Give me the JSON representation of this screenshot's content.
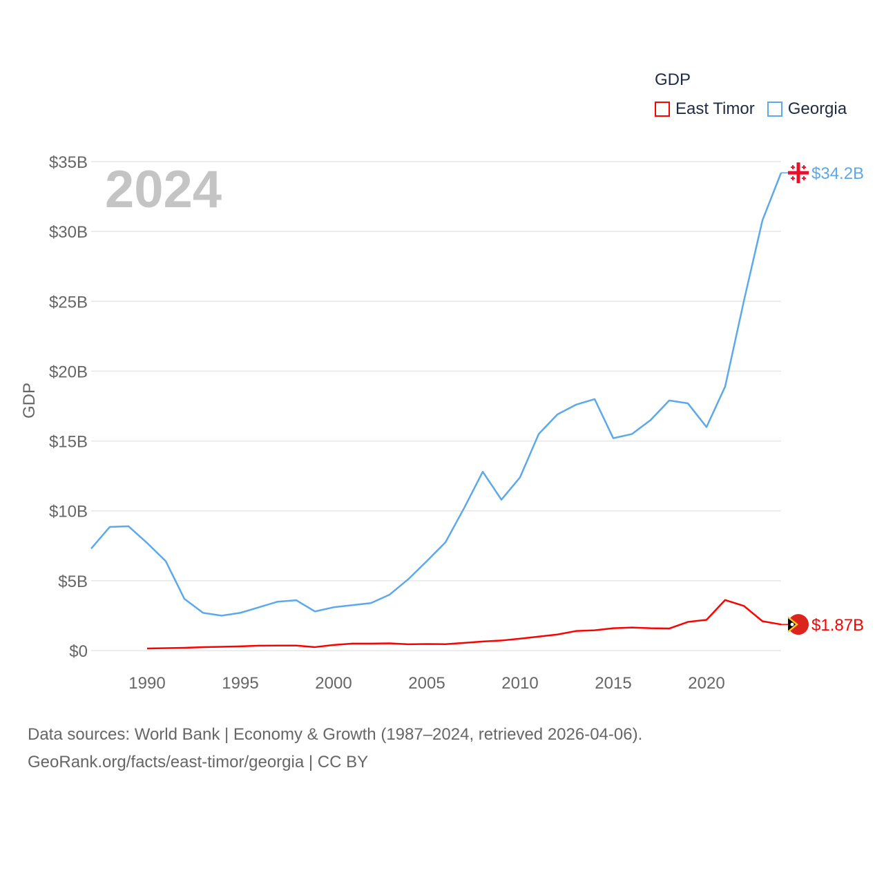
{
  "chart_data": {
    "type": "line",
    "title": "GDP",
    "ylabel": "GDP",
    "year_label": "2024",
    "xlim": [
      1987,
      2024
    ],
    "ylim": [
      0,
      35
    ],
    "x_ticks": [
      1990,
      1995,
      2000,
      2005,
      2010,
      2015,
      2020
    ],
    "y_ticks": [
      0,
      5,
      10,
      15,
      20,
      25,
      30,
      35
    ],
    "y_tick_labels": [
      "$0",
      "$5B",
      "$10B",
      "$15B",
      "$20B",
      "$25B",
      "$30B",
      "$35B"
    ],
    "grid": true,
    "legend_position": "top-right",
    "series": [
      {
        "name": "East Timor",
        "color": "#ff0000",
        "end_label": "$1.87B",
        "flag": "east-timor-flag",
        "x": [
          1990,
          1991,
          1992,
          1993,
          1994,
          1995,
          1996,
          1997,
          1998,
          1999,
          2000,
          2001,
          2002,
          2003,
          2004,
          2005,
          2006,
          2007,
          2008,
          2009,
          2010,
          2011,
          2012,
          2013,
          2014,
          2015,
          2016,
          2017,
          2018,
          2019,
          2020,
          2021,
          2022,
          2023,
          2024
        ],
        "values": [
          0.15,
          0.17,
          0.2,
          0.25,
          0.27,
          0.3,
          0.35,
          0.36,
          0.36,
          0.25,
          0.4,
          0.5,
          0.5,
          0.52,
          0.45,
          0.47,
          0.46,
          0.55,
          0.65,
          0.72,
          0.85,
          1.0,
          1.15,
          1.4,
          1.45,
          1.6,
          1.65,
          1.6,
          1.58,
          2.05,
          2.2,
          3.62,
          3.2,
          2.1,
          1.87
        ]
      },
      {
        "name": "Georgia",
        "color": "#5ba8ec",
        "end_label": "$34.2B",
        "flag": "georgia-flag",
        "x": [
          1987,
          1988,
          1989,
          1990,
          1991,
          1992,
          1993,
          1994,
          1995,
          1996,
          1997,
          1998,
          1999,
          2000,
          2001,
          2002,
          2003,
          2004,
          2005,
          2006,
          2007,
          2008,
          2009,
          2010,
          2011,
          2012,
          2013,
          2014,
          2015,
          2016,
          2017,
          2018,
          2019,
          2020,
          2021,
          2022,
          2023,
          2024
        ],
        "values": [
          7.3,
          8.85,
          8.9,
          7.7,
          6.4,
          3.7,
          2.7,
          2.5,
          2.7,
          3.1,
          3.5,
          3.6,
          2.8,
          3.1,
          3.25,
          3.4,
          4.0,
          5.1,
          6.4,
          7.75,
          10.2,
          12.8,
          10.8,
          12.4,
          15.5,
          16.9,
          17.6,
          18.0,
          15.2,
          15.5,
          16.5,
          17.9,
          17.7,
          16.0,
          18.9,
          25.0,
          30.8,
          34.2
        ]
      }
    ]
  },
  "footer": {
    "line1": "Data sources: World Bank | Economy & Growth (1987–2024, retrieved 2026-04-06).",
    "line2": "GeoRank.org/facts/east-timor/georgia | CC BY"
  }
}
